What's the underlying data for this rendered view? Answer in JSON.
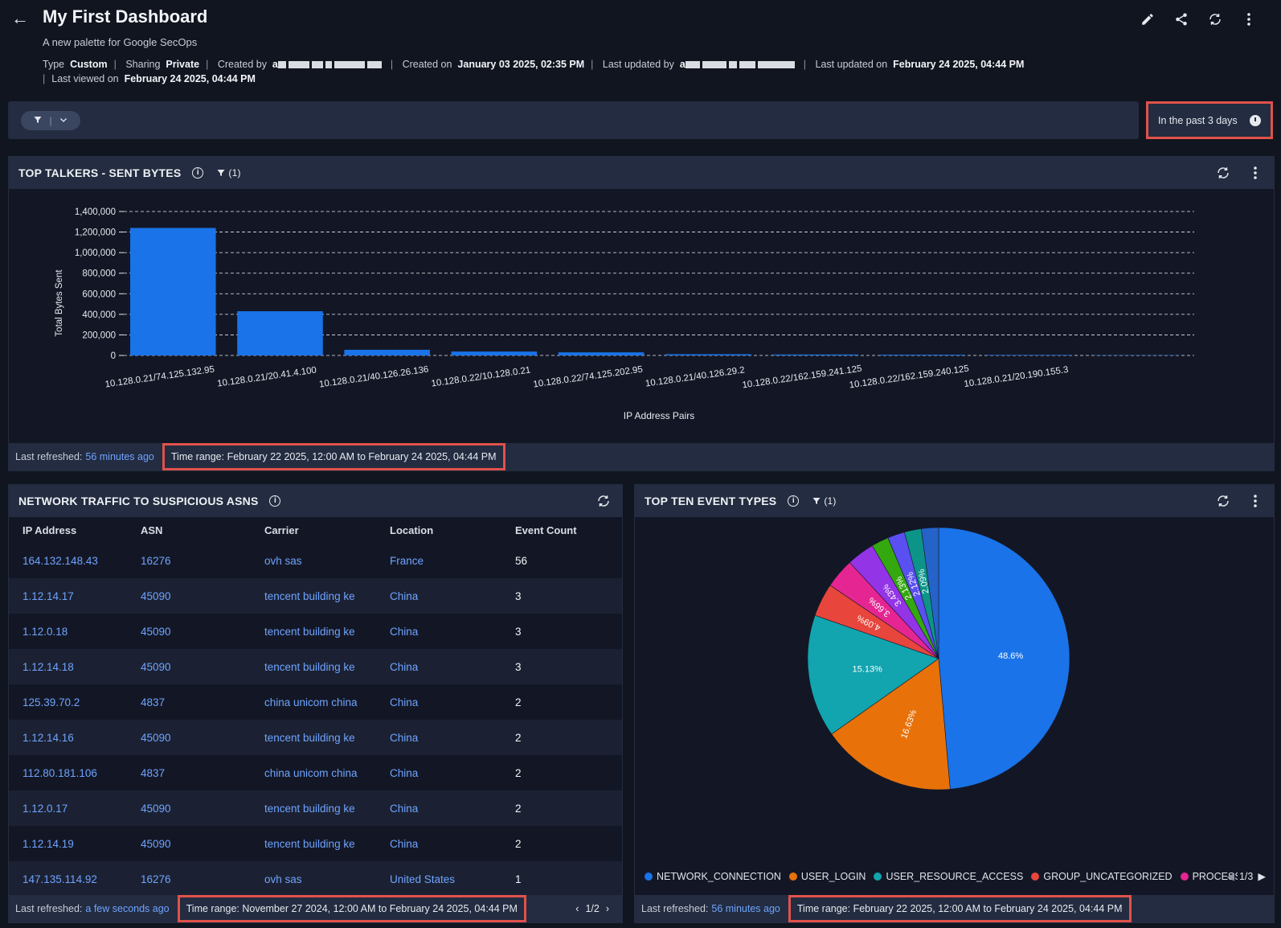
{
  "header": {
    "title": "My First Dashboard",
    "subtitle": "A new palette for Google SecOps",
    "type_label": "Type",
    "type_value": "Custom",
    "sharing_label": "Sharing",
    "sharing_value": "Private",
    "created_by_label": "Created by",
    "created_on_label": "Created on",
    "created_on_value": "January 03 2025, 02:35 PM",
    "updated_by_label": "Last updated by",
    "updated_on_label": "Last updated on",
    "updated_on_value": "February 24 2025, 04:44 PM",
    "viewed_on_label": "Last viewed on",
    "viewed_on_value": "February 24 2025, 04:44 PM",
    "actions": [
      "edit-icon",
      "share-icon",
      "refresh-icon",
      "more-vert-icon"
    ]
  },
  "filterbar": {
    "time_selector": "In the past 3 days"
  },
  "top_talkers": {
    "title": "TOP TALKERS - SENT BYTES",
    "filter_count": "(1)",
    "footer_label": "Last refreshed:",
    "footer_link": "56 minutes ago",
    "time_range": "Time range: February 22 2025, 12:00 AM to February 24 2025, 04:44 PM"
  },
  "network_traffic": {
    "title": "NETWORK TRAFFIC TO SUSPICIOUS ASNS",
    "columns": [
      "IP Address",
      "ASN",
      "Carrier",
      "Location",
      "Event Count"
    ],
    "rows": [
      [
        "164.132.148.43",
        "16276",
        "ovh sas",
        "France",
        "56"
      ],
      [
        "1.12.14.17",
        "45090",
        "tencent building ke",
        "China",
        "3"
      ],
      [
        "1.12.0.18",
        "45090",
        "tencent building ke",
        "China",
        "3"
      ],
      [
        "1.12.14.18",
        "45090",
        "tencent building ke",
        "China",
        "3"
      ],
      [
        "125.39.70.2",
        "4837",
        "china unicom china",
        "China",
        "2"
      ],
      [
        "1.12.14.16",
        "45090",
        "tencent building ke",
        "China",
        "2"
      ],
      [
        "112.80.181.106",
        "4837",
        "china unicom china",
        "China",
        "2"
      ],
      [
        "1.12.0.17",
        "45090",
        "tencent building ke",
        "China",
        "2"
      ],
      [
        "1.12.14.19",
        "45090",
        "tencent building ke",
        "China",
        "2"
      ],
      [
        "147.135.114.92",
        "16276",
        "ovh sas",
        "United States",
        "1"
      ]
    ],
    "footer_label": "Last refreshed:",
    "footer_link": "a few seconds ago",
    "time_range": "Time range: November 27 2024, 12:00 AM to February 24 2025, 04:44 PM",
    "pager": "1/2"
  },
  "top_events": {
    "title": "TOP TEN EVENT TYPES",
    "filter_count": "(1)",
    "legend_pager": "1/3",
    "footer_label": "Last refreshed:",
    "footer_link": "56 minutes ago",
    "time_range": "Time range: February 22 2025, 12:00 AM to February 24 2025, 04:44 PM"
  },
  "chart_data": [
    {
      "type": "bar",
      "xlabel": "IP Address Pairs",
      "ylabel": "Total Bytes Sent",
      "ylim": [
        0,
        1400000
      ],
      "yticks": [
        "0",
        "200,000",
        "400,000",
        "600,000",
        "800,000",
        "1,000,000",
        "1,200,000",
        "1,400,000"
      ],
      "grid": true,
      "color": "#1a73e8",
      "categories": [
        "10.128.0.21/74.125.132.95",
        "10.128.0.21/20.41.4.100",
        "10.128.0.21/40.126.26.136",
        "10.128.0.22/10.128.0.21",
        "10.128.0.22/74.125.202.95",
        "10.128.0.21/40.126.29.2",
        "10.128.0.22/162.159.241.125",
        "10.128.0.22/162.159.240.125",
        "10.128.0.21/20.190.155.3",
        ""
      ],
      "values": [
        1240000,
        430000,
        55000,
        38000,
        30000,
        12000,
        9000,
        7000,
        5000,
        3000
      ]
    },
    {
      "type": "pie",
      "legend_position": "bottom",
      "slices": [
        {
          "label": "NETWORK_CONNECTION",
          "value": 48.6,
          "text": "48.6%",
          "color": "#1a73e8"
        },
        {
          "label": "USER_LOGIN",
          "value": 16.63,
          "text": "16.63%",
          "color": "#e8710a"
        },
        {
          "label": "USER_RESOURCE_ACCESS",
          "value": 15.13,
          "text": "15.13%",
          "color": "#12a4af"
        },
        {
          "label": "GROUP_UNCATEGORIZED",
          "value": 4.09,
          "text": "4.09%",
          "color": "#e8453c"
        },
        {
          "label": "PROCESS",
          "value": 3.66,
          "text": "3.66%",
          "color": "#e52592"
        },
        {
          "label": "",
          "value": 3.43,
          "text": "3.43%",
          "color": "#9334e6"
        },
        {
          "label": "",
          "value": 2.13,
          "text": "2.13%",
          "color": "#34a80f"
        },
        {
          "label": "",
          "value": 2.12,
          "text": "2.12%",
          "color": "#5a4ff0"
        },
        {
          "label": "",
          "value": 2.09,
          "text": "2.09%",
          "color": "#0d9488"
        },
        {
          "label": "",
          "value": 2.12,
          "text": "",
          "color": "#2563c9"
        }
      ]
    }
  ]
}
